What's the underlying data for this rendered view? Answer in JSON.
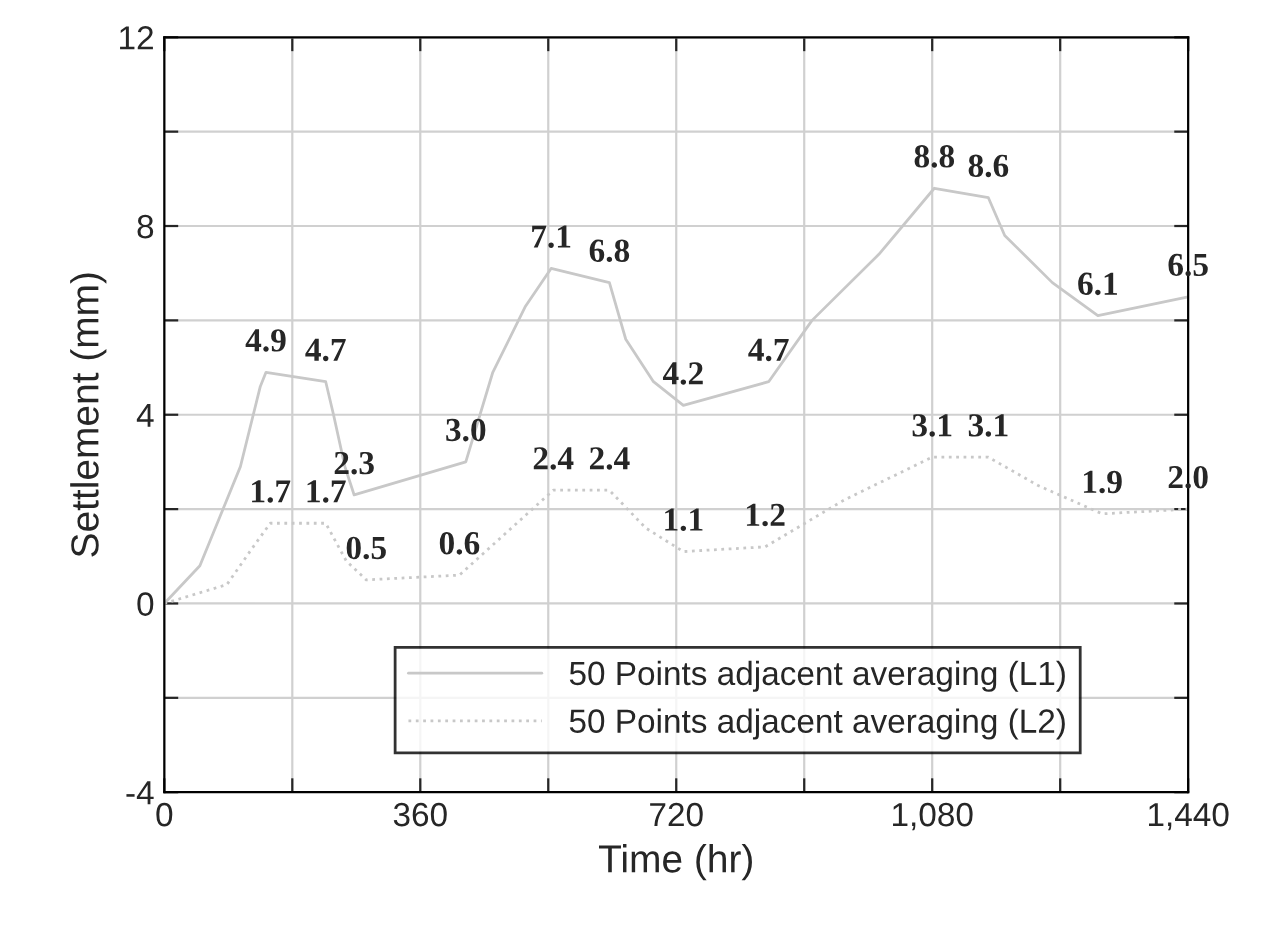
{
  "chart_data": {
    "type": "line",
    "xlabel": "Time (hr)",
    "ylabel": "Settlement (mm)",
    "xlim": [
      0,
      1440
    ],
    "ylim": [
      -4,
      12
    ],
    "xticks": [
      0,
      {
        "value": 180,
        "label": null
      },
      360,
      {
        "value": 540,
        "label": null
      },
      720,
      {
        "value": 900,
        "label": null
      },
      {
        "value": 1080,
        "label": "1,080"
      },
      {
        "value": 1260,
        "label": null
      },
      {
        "value": 1440,
        "label": "1,440"
      }
    ],
    "yticks": [
      -4,
      {
        "value": -2,
        "label": null
      },
      0,
      {
        "value": 2,
        "label": null
      },
      4,
      {
        "value": 6,
        "label": null
      },
      8,
      {
        "value": 10,
        "label": null
      },
      12
    ],
    "grid": true,
    "legend": "bottom",
    "marker": "none",
    "series": [
      {
        "name": "50 Points adjacent averaging (L1)",
        "color": "#c8c8c8",
        "line_style": "solid",
        "x": [
          0,
          50,
          107,
          135,
          143,
          227,
          238,
          254,
          267,
          424,
          462,
          508,
          544,
          626,
          649,
          688,
          730,
          850,
          911,
          1005,
          1083,
          1159,
          1182,
          1249,
          1313,
          1440
        ],
        "values": [
          0,
          0.8,
          2.9,
          4.6,
          4.9,
          4.7,
          4.0,
          2.9,
          2.3,
          3.0,
          4.9,
          6.3,
          7.1,
          6.8,
          5.6,
          4.7,
          4.2,
          4.7,
          6.0,
          7.4,
          8.8,
          8.6,
          7.8,
          6.8,
          6.1,
          6.5
        ]
      },
      {
        "name": "50 Points adjacent averaging (L2)",
        "color": "#c8c8c8",
        "line_style": "dotted",
        "x": [
          0,
          88,
          125,
          149,
          227,
          256,
          284,
          415,
          481,
          547,
          626,
          677,
          730,
          845,
          957,
          1080,
          1159,
          1229,
          1319,
          1440
        ],
        "values": [
          0,
          0.4,
          1.2,
          1.7,
          1.7,
          0.9,
          0.5,
          0.6,
          1.5,
          2.4,
          2.4,
          1.6,
          1.1,
          1.2,
          2.2,
          3.1,
          3.1,
          2.5,
          1.9,
          2.0
        ]
      }
    ],
    "annotations": [
      {
        "text": "4.9",
        "x": 143,
        "y": 4.9
      },
      {
        "text": "4.7",
        "x": 227,
        "y": 4.7
      },
      {
        "text": "2.3",
        "x": 267,
        "y": 2.3
      },
      {
        "text": "3.0",
        "x": 424,
        "y": 3.0
      },
      {
        "text": "7.1",
        "x": 544,
        "y": 7.1
      },
      {
        "text": "6.8",
        "x": 626,
        "y": 6.8
      },
      {
        "text": "4.2",
        "x": 730,
        "y": 4.2
      },
      {
        "text": "4.7",
        "x": 850,
        "y": 4.7
      },
      {
        "text": "8.8",
        "x": 1083,
        "y": 8.8
      },
      {
        "text": "8.6",
        "x": 1159,
        "y": 8.6
      },
      {
        "text": "6.1",
        "x": 1313,
        "y": 6.1
      },
      {
        "text": "6.5",
        "x": 1440,
        "y": 6.5
      },
      {
        "text": "1.7",
        "x": 149,
        "y": 1.7
      },
      {
        "text": "1.7",
        "x": 227,
        "y": 1.7
      },
      {
        "text": "0.5",
        "x": 284,
        "y": 0.5
      },
      {
        "text": "0.6",
        "x": 415,
        "y": 0.6
      },
      {
        "text": "2.4",
        "x": 547,
        "y": 2.4
      },
      {
        "text": "2.4",
        "x": 626,
        "y": 2.4
      },
      {
        "text": "1.1",
        "x": 730,
        "y": 1.1
      },
      {
        "text": "1.2",
        "x": 845,
        "y": 1.2
      },
      {
        "text": "3.1",
        "x": 1080,
        "y": 3.1
      },
      {
        "text": "3.1",
        "x": 1159,
        "y": 3.1
      },
      {
        "text": "1.9",
        "x": 1319,
        "y": 1.9
      },
      {
        "text": "2.0",
        "x": 1440,
        "y": 2.0
      }
    ]
  }
}
